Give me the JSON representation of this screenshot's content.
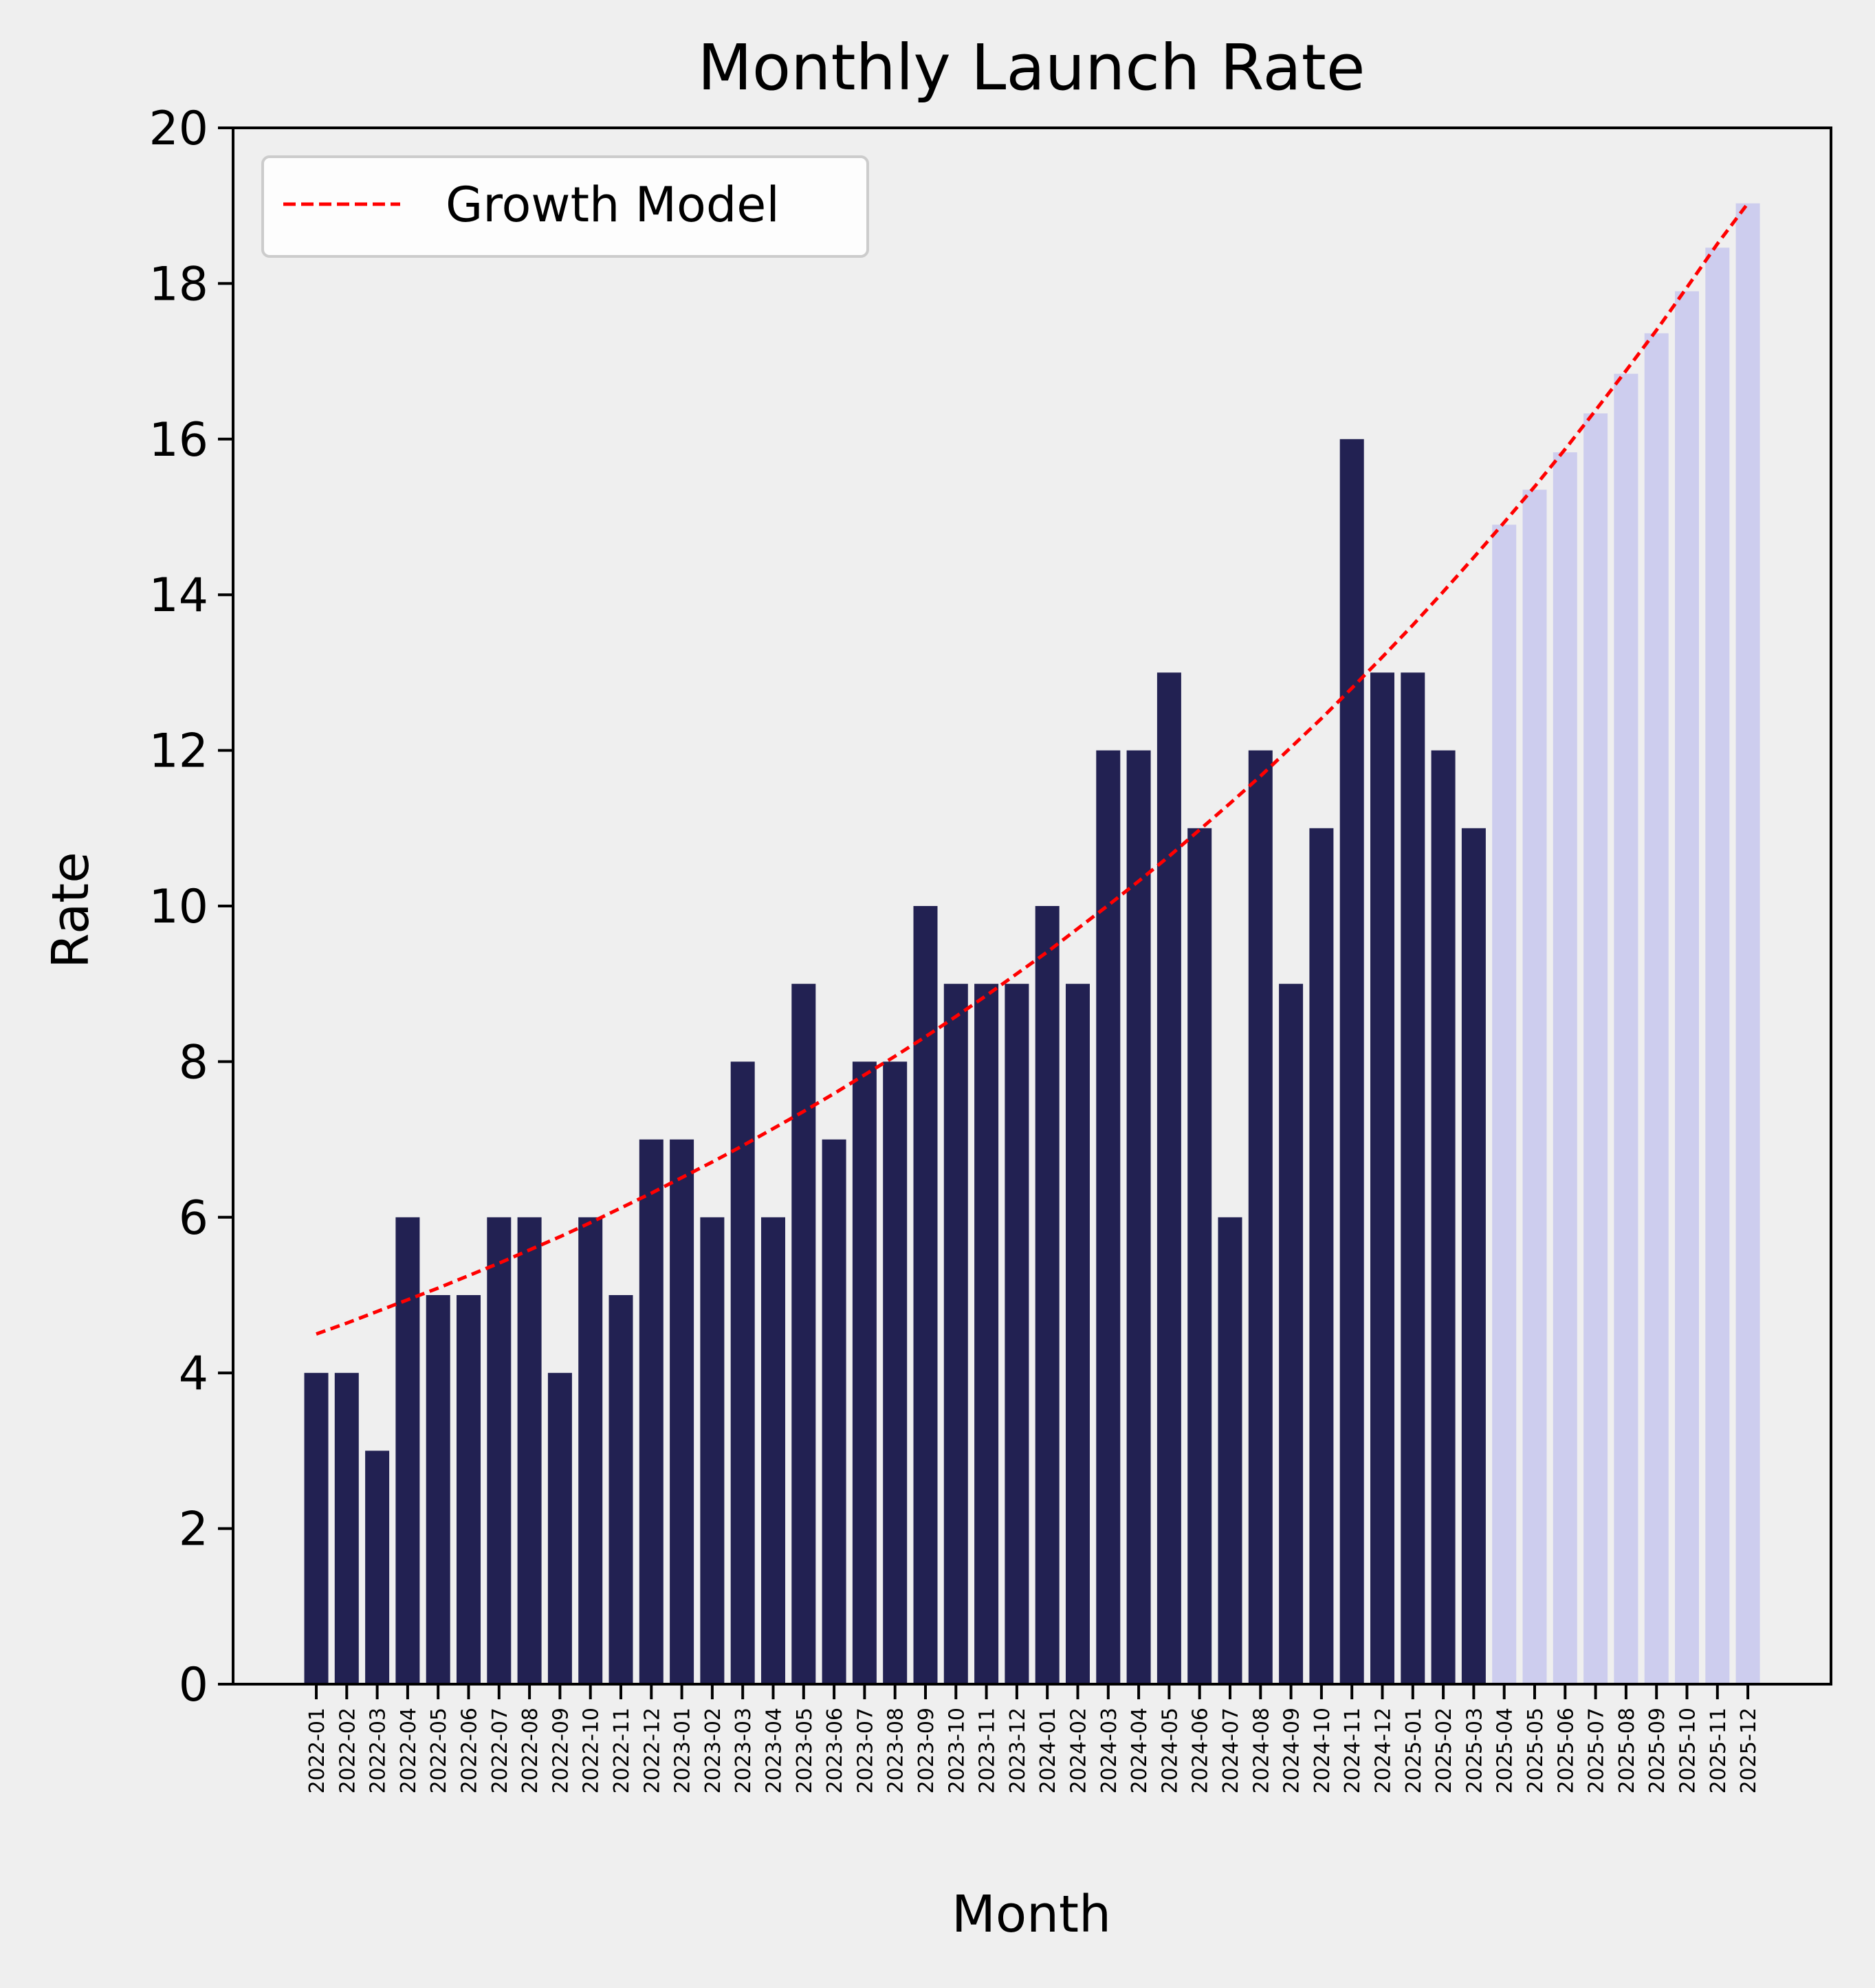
{
  "chart_data": {
    "type": "bar",
    "title": "Monthly Launch Rate",
    "xlabel": "Month",
    "ylabel": "Rate",
    "ylim": [
      0,
      20
    ],
    "yticks": [
      0,
      2,
      4,
      6,
      8,
      10,
      12,
      14,
      16,
      18,
      20
    ],
    "grid": false,
    "legend_position": "top-left",
    "categories": [
      "2022-01",
      "2022-02",
      "2022-03",
      "2022-04",
      "2022-05",
      "2022-06",
      "2022-07",
      "2022-08",
      "2022-09",
      "2022-10",
      "2022-11",
      "2022-12",
      "2023-01",
      "2023-02",
      "2023-03",
      "2023-04",
      "2023-05",
      "2023-06",
      "2023-07",
      "2023-08",
      "2023-09",
      "2023-10",
      "2023-11",
      "2023-12",
      "2024-01",
      "2024-02",
      "2024-03",
      "2024-04",
      "2024-05",
      "2024-06",
      "2024-07",
      "2024-08",
      "2024-09",
      "2024-10",
      "2024-11",
      "2024-12",
      "2025-01",
      "2025-02",
      "2025-03",
      "2025-04",
      "2025-05",
      "2025-06",
      "2025-07",
      "2025-08",
      "2025-09",
      "2025-10",
      "2025-11",
      "2025-12"
    ],
    "xtick_labels": [
      "2022-01",
      "2022-02",
      "2022-03",
      "2022-04",
      "2022-05",
      "2022-06",
      "2022-07",
      "2022-08",
      "2022-09",
      "2022-10",
      "2022-11",
      "2022-12",
      "2023-01",
      "2023-02",
      "2023-03",
      "2023-04",
      "2023-05",
      "2023-06",
      "2023-07",
      "2023-08",
      "2023-09",
      "2023-10",
      "2023-11",
      "2023-12",
      "2024-01",
      "2024-02",
      "2024-03",
      "2024-04",
      "2024-05",
      "2024-06",
      "2024-07",
      "2024-08",
      "2024-09",
      "2024-10",
      "2024-11",
      "2024-12",
      "2025-01",
      "2025-02",
      "2025-03",
      "2025-04",
      "2025-05",
      "2025-06",
      "2025-07",
      "2025-08",
      "2025-09",
      "2025-10",
      "2025-11",
      "2025-12"
    ],
    "series": [
      {
        "kind": "bar",
        "color": "#222152",
        "values": [
          4,
          4,
          3,
          6,
          5,
          5,
          6,
          6,
          4,
          6,
          5,
          7,
          7,
          6,
          8,
          6,
          9,
          7,
          8,
          8,
          10,
          9,
          9,
          9,
          10,
          9,
          12,
          12,
          13,
          11,
          6,
          12,
          9,
          11,
          16,
          13,
          13,
          12,
          11,
          null,
          null,
          null,
          null,
          null,
          null,
          null,
          null,
          null
        ]
      },
      {
        "kind": "bar",
        "color": "#cdcdee",
        "values": [
          null,
          null,
          null,
          null,
          null,
          null,
          null,
          null,
          null,
          null,
          null,
          null,
          null,
          null,
          null,
          null,
          null,
          null,
          null,
          null,
          null,
          null,
          null,
          null,
          null,
          null,
          null,
          null,
          null,
          null,
          null,
          null,
          null,
          null,
          null,
          null,
          null,
          null,
          null,
          14.9,
          15.35,
          15.83,
          16.33,
          16.84,
          17.36,
          17.9,
          18.46,
          19.03
        ]
      },
      {
        "name": "Growth Model",
        "kind": "line",
        "style": "dashed",
        "color": "#ff0000",
        "values": [
          4.5,
          4.64,
          4.79,
          4.94,
          5.09,
          5.25,
          5.41,
          5.58,
          5.75,
          5.93,
          6.12,
          6.31,
          6.51,
          6.71,
          6.92,
          7.14,
          7.36,
          7.59,
          7.83,
          8.07,
          8.32,
          8.58,
          8.85,
          9.13,
          9.41,
          9.71,
          10.01,
          10.32,
          10.64,
          10.98,
          11.32,
          11.67,
          12.04,
          12.41,
          12.8,
          13.2,
          13.61,
          14.04,
          14.48,
          14.93,
          15.39,
          15.87,
          16.37,
          16.88,
          17.4,
          17.95,
          18.51,
          19.03
        ]
      }
    ]
  }
}
